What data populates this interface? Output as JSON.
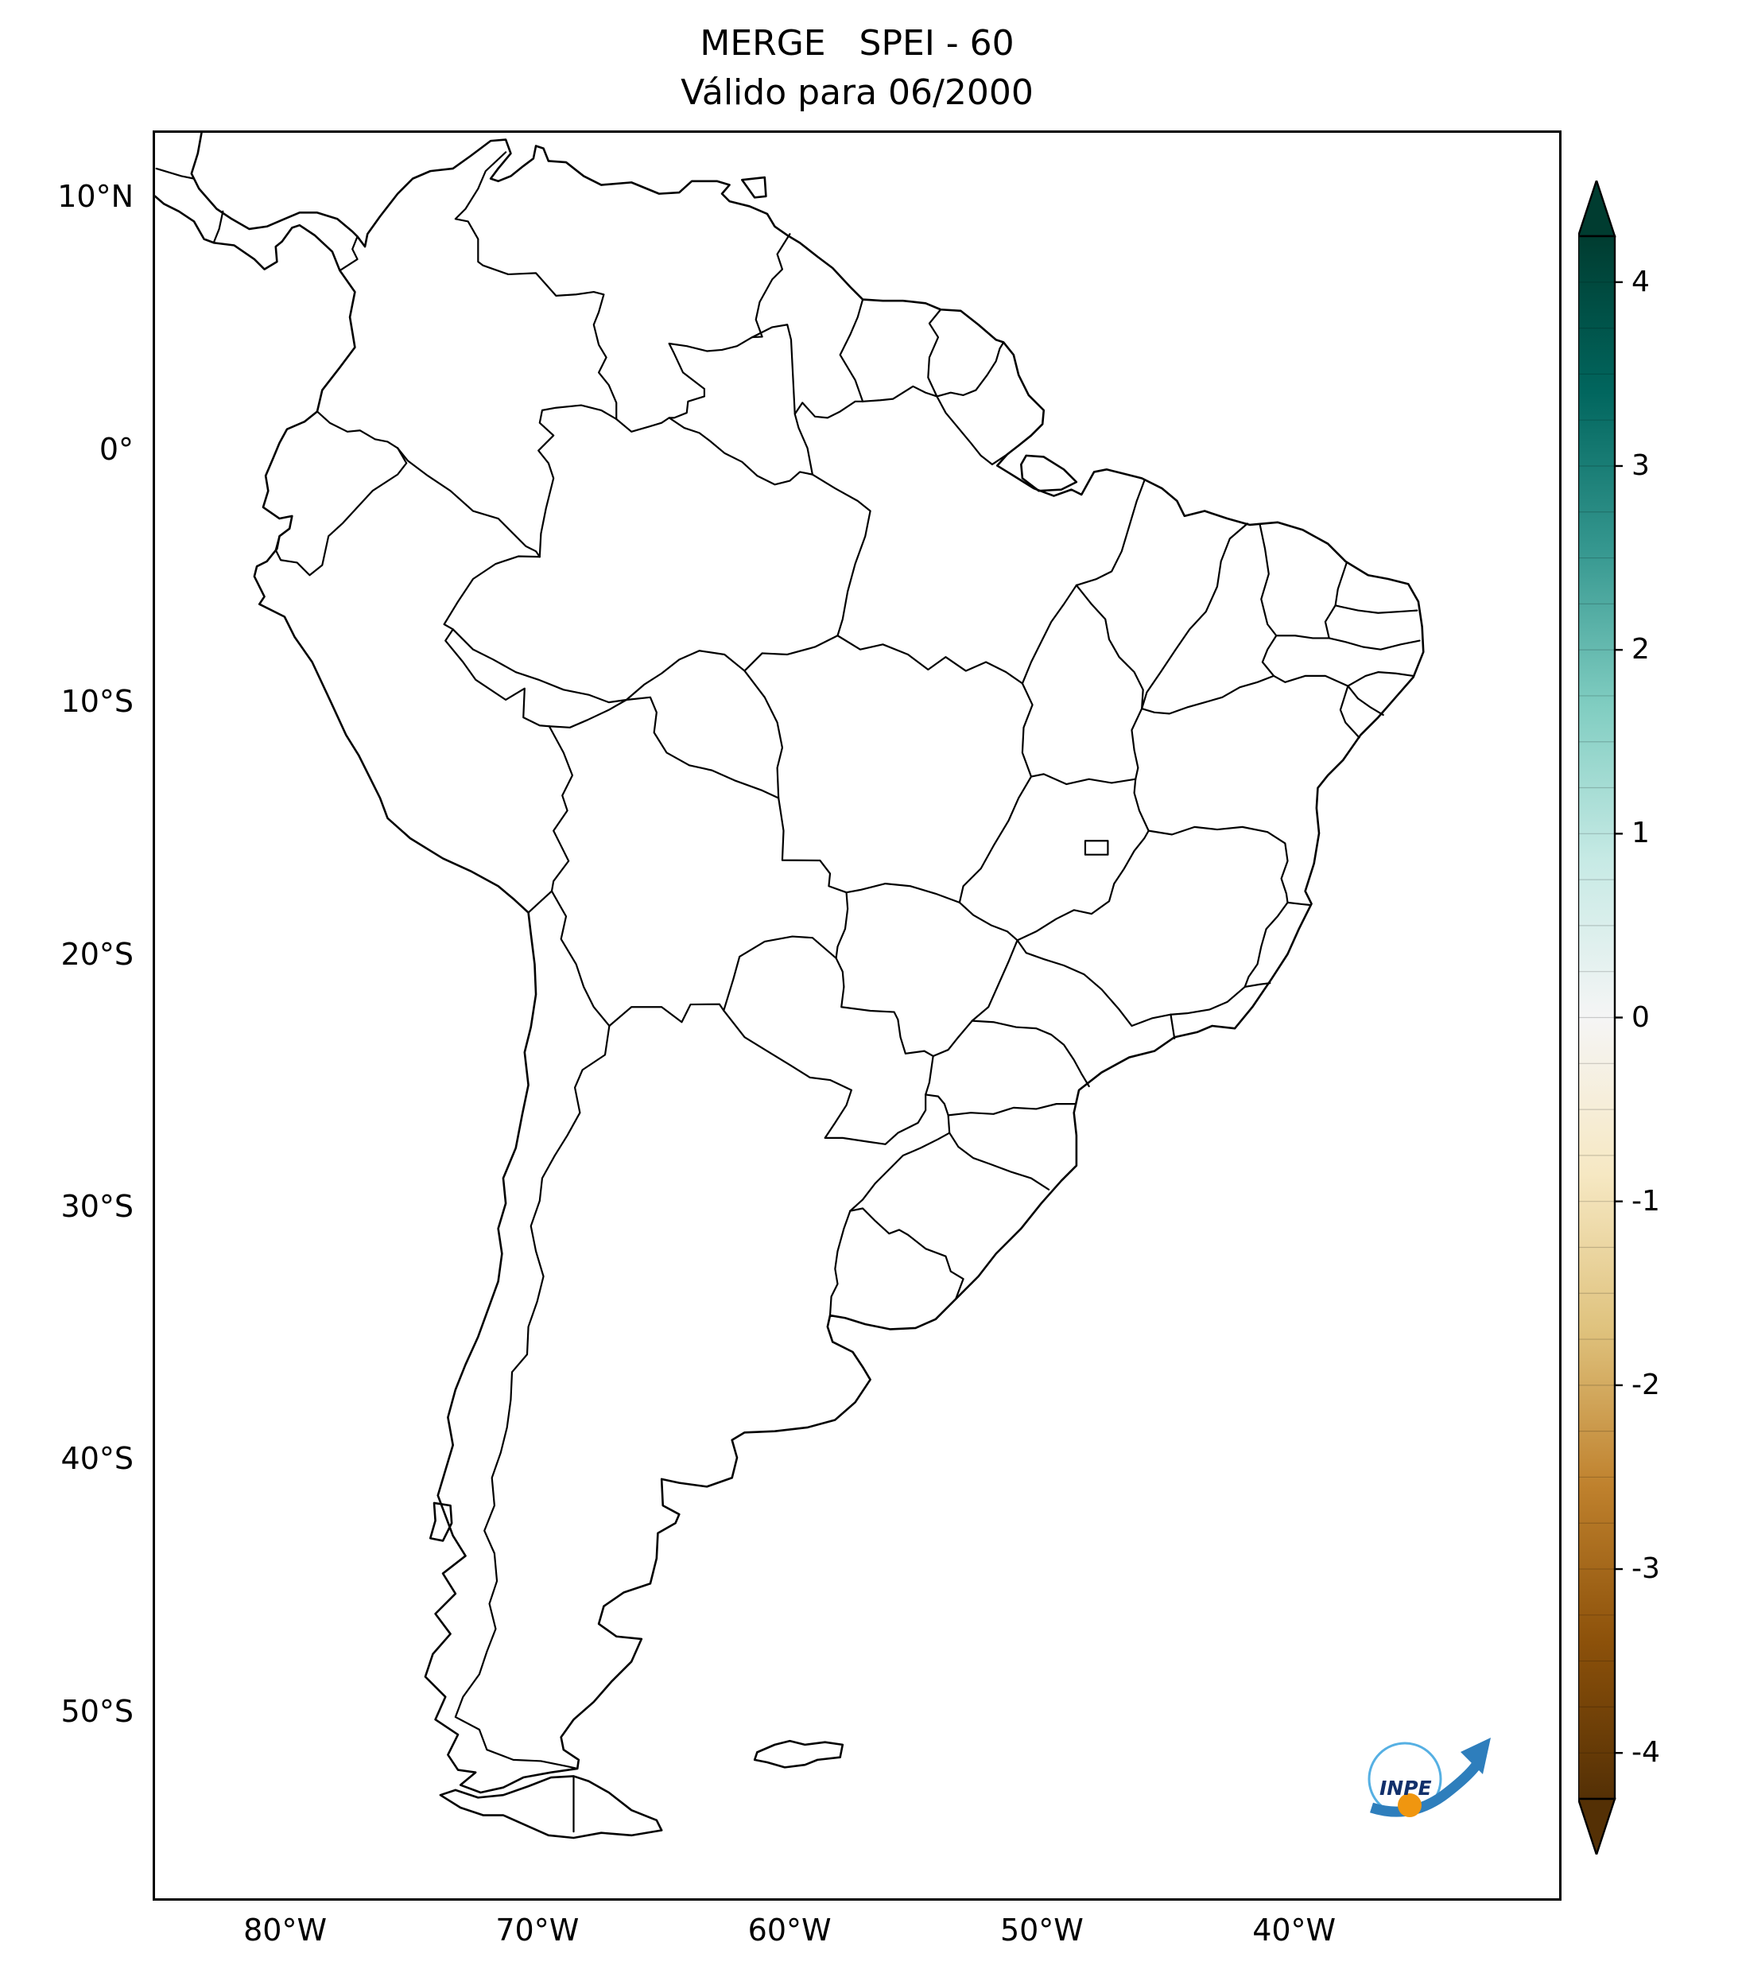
{
  "chart": {
    "title": "MERGE   SPEI - 60",
    "subtitle": "Válido para 06/2000"
  },
  "logo": {
    "text": "INPE",
    "arrow_color": "#2e7ebc",
    "swirl_color": "#56b0e3",
    "ball_color": "#f0960f",
    "text_color": "#12306b"
  },
  "chart_data": {
    "type": "map",
    "title": "MERGE   SPEI - 60",
    "subtitle": "Válido para 06/2000",
    "variable": "SPEI - 60",
    "valid_for": "06/2000",
    "region": "South America with national borders and Brazilian state boundaries",
    "projection": "equirectangular (PlateCarree)",
    "extent": {
      "lon_min": -85.25,
      "lon_max": -29.4,
      "lat_min": -57.5,
      "lat_max": 12.62
    },
    "grid": false,
    "x_axis": {
      "ticks": [
        {
          "label": "80°W",
          "lon": -80
        },
        {
          "label": "70°W",
          "lon": -70
        },
        {
          "label": "60°W",
          "lon": -60
        },
        {
          "label": "50°W",
          "lon": -50
        },
        {
          "label": "40°W",
          "lon": -40
        }
      ]
    },
    "y_axis": {
      "ticks": [
        {
          "label": "10°N",
          "lat": 10
        },
        {
          "label": "0°",
          "lat": 0
        },
        {
          "label": "10°S",
          "lat": -10
        },
        {
          "label": "20°S",
          "lat": -20
        },
        {
          "label": "30°S",
          "lat": -30
        },
        {
          "label": "40°S",
          "lat": -40
        },
        {
          "label": "50°S",
          "lat": -50
        }
      ]
    },
    "colorbar": {
      "orientation": "vertical",
      "position": "right",
      "range": [
        -4.25,
        4.25
      ],
      "extend": "both",
      "levels_step": 0.25,
      "colormap": "BrBG (dark teal top, white middle, dark brown bottom)",
      "colors_top_to_bottom": [
        "#003c30",
        "#01665e",
        "#35978f",
        "#80cdc1",
        "#c7eae5",
        "#f5f5f5",
        "#f6e8c3",
        "#dfc27d",
        "#bf812d",
        "#8c510a",
        "#543005"
      ],
      "ticks": [
        {
          "label": "4",
          "value": 4
        },
        {
          "label": "3",
          "value": 3
        },
        {
          "label": "2",
          "value": 2
        },
        {
          "label": "1",
          "value": 1
        },
        {
          "label": "0",
          "value": 0
        },
        {
          "label": "-1",
          "value": -1
        },
        {
          "label": "-2",
          "value": -2
        },
        {
          "label": "-3",
          "value": -3
        },
        {
          "label": "-4",
          "value": -4
        }
      ]
    },
    "values": "no colored SPEI field visible; map interior is blank white with black boundary lines",
    "line_color": "#000000",
    "background_color": "#ffffff"
  }
}
